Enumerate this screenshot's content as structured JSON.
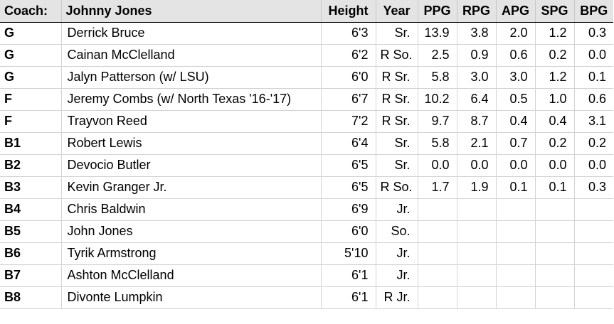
{
  "header": {
    "coach_label": "Coach:",
    "coach_name": "Johnny Jones",
    "columns": [
      "Height",
      "Year",
      "PPG",
      "RPG",
      "APG",
      "SPG",
      "BPG"
    ]
  },
  "rows": [
    {
      "pos": "G",
      "name": "Derrick Bruce",
      "height": "6'3",
      "year": "Sr.",
      "stats": [
        "13.9",
        "3.8",
        "2.0",
        "1.2",
        "0.3"
      ]
    },
    {
      "pos": "G",
      "name": "Cainan McClelland",
      "height": "6'2",
      "year": "R So.",
      "stats": [
        "2.5",
        "0.9",
        "0.6",
        "0.2",
        "0.0"
      ]
    },
    {
      "pos": "G",
      "name": "Jalyn Patterson (w/ LSU)",
      "height": "6'0",
      "year": "R Sr.",
      "stats": [
        "5.8",
        "3.0",
        "3.0",
        "1.2",
        "0.1"
      ]
    },
    {
      "pos": "F",
      "name": "Jeremy Combs (w/ North Texas '16-'17)",
      "height": "6'7",
      "year": "R Sr.",
      "stats": [
        "10.2",
        "6.4",
        "0.5",
        "1.0",
        "0.6"
      ]
    },
    {
      "pos": "F",
      "name": "Trayvon Reed",
      "height": "7'2",
      "year": "R Sr.",
      "stats": [
        "9.7",
        "8.7",
        "0.4",
        "0.4",
        "3.1"
      ]
    },
    {
      "pos": "B1",
      "name": "Robert Lewis",
      "height": "6'4",
      "year": "Sr.",
      "stats": [
        "5.8",
        "2.1",
        "0.7",
        "0.2",
        "0.2"
      ]
    },
    {
      "pos": "B2",
      "name": "Devocio Butler",
      "height": "6'5",
      "year": "Sr.",
      "stats": [
        "0.0",
        "0.0",
        "0.0",
        "0.0",
        "0.0"
      ]
    },
    {
      "pos": "B3",
      "name": "Kevin Granger Jr.",
      "height": "6'5",
      "year": "R So.",
      "stats": [
        "1.7",
        "1.9",
        "0.1",
        "0.1",
        "0.3"
      ]
    },
    {
      "pos": "B4",
      "name": "Chris Baldwin",
      "height": "6'9",
      "year": "Jr.",
      "stats": [
        "",
        "",
        "",
        "",
        ""
      ]
    },
    {
      "pos": "B5",
      "name": "John Jones",
      "height": "6'0",
      "year": "So.",
      "stats": [
        "",
        "",
        "",
        "",
        ""
      ]
    },
    {
      "pos": "B6",
      "name": "Tyrik Armstrong",
      "height": "5'10",
      "year": "Jr.",
      "stats": [
        "",
        "",
        "",
        "",
        ""
      ]
    },
    {
      "pos": "B7",
      "name": "Ashton McClelland",
      "height": "6'1",
      "year": "Jr.",
      "stats": [
        "",
        "",
        "",
        "",
        ""
      ]
    },
    {
      "pos": "B8",
      "name": "Divonte Lumpkin",
      "height": "6'1",
      "year": "R Jr.",
      "stats": [
        "",
        "",
        "",
        "",
        ""
      ]
    }
  ]
}
